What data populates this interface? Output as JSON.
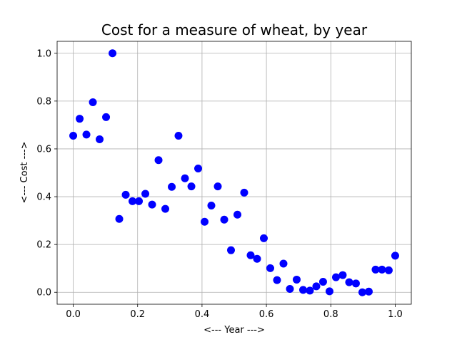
{
  "chart_data": {
    "type": "scatter",
    "title": "Cost for a measure of wheat, by year",
    "xlabel": "<--- Year --->",
    "ylabel": "<--- Cost --->",
    "xlim": [
      -0.05,
      1.05
    ],
    "ylim": [
      -0.05,
      1.05
    ],
    "xticks": [
      "0.0",
      "0.2",
      "0.4",
      "0.6",
      "0.8",
      "1.0"
    ],
    "yticks": [
      "0.0",
      "0.2",
      "0.4",
      "0.6",
      "0.8",
      "1.0"
    ],
    "grid": true,
    "marker_color": "#0000ff",
    "x": [
      0.0,
      0.02,
      0.041,
      0.061,
      0.082,
      0.102,
      0.122,
      0.143,
      0.163,
      0.184,
      0.204,
      0.224,
      0.245,
      0.265,
      0.286,
      0.306,
      0.327,
      0.347,
      0.367,
      0.388,
      0.408,
      0.429,
      0.449,
      0.469,
      0.49,
      0.51,
      0.531,
      0.551,
      0.571,
      0.592,
      0.612,
      0.633,
      0.653,
      0.673,
      0.694,
      0.714,
      0.735,
      0.755,
      0.776,
      0.796,
      0.816,
      0.837,
      0.857,
      0.878,
      0.898,
      0.918,
      0.939,
      0.959,
      0.98,
      1.0
    ],
    "y": [
      0.655,
      0.726,
      0.66,
      0.795,
      0.64,
      0.733,
      1.0,
      0.307,
      0.408,
      0.381,
      0.381,
      0.412,
      0.367,
      0.553,
      0.349,
      0.441,
      0.655,
      0.477,
      0.443,
      0.518,
      0.295,
      0.363,
      0.443,
      0.304,
      0.176,
      0.325,
      0.417,
      0.155,
      0.14,
      0.226,
      0.101,
      0.051,
      0.12,
      0.014,
      0.053,
      0.01,
      0.007,
      0.025,
      0.044,
      0.004,
      0.063,
      0.072,
      0.042,
      0.037,
      0.0,
      0.003,
      0.095,
      0.095,
      0.092,
      0.153
    ]
  }
}
